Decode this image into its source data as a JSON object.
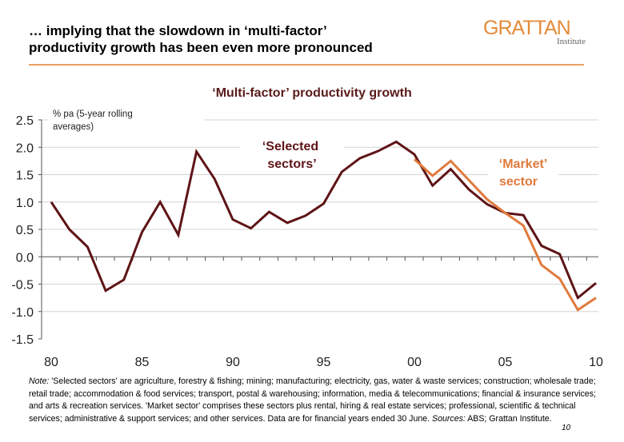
{
  "header": {
    "title_line1": "… implying that the slowdown in ‘multi-factor’",
    "title_line2": "productivity growth has been even more pronounced",
    "logo_main": "GRATTAN",
    "logo_sub": "Institute"
  },
  "colors": {
    "selected": "#5e1416",
    "market": "#e07a3c",
    "accent": "#e8a060"
  },
  "chart_data": {
    "type": "line",
    "title": "‘Multi-factor’ productivity growth",
    "ylabel": "% pa (5-year rolling averages)",
    "ylim": [
      -1.5,
      2.5
    ],
    "yticks": [
      "2.5",
      "2.0",
      "1.5",
      "1.0",
      "0.5",
      "0.0",
      "-0.5",
      "-1.0",
      "-1.5"
    ],
    "xlim": [
      1980,
      2010
    ],
    "xticks": [
      {
        "year": 1980,
        "label": "80"
      },
      {
        "year": 1985,
        "label": "85"
      },
      {
        "year": 1990,
        "label": "90"
      },
      {
        "year": 1995,
        "label": "95"
      },
      {
        "year": 2000,
        "label": "00"
      },
      {
        "year": 2005,
        "label": "05"
      },
      {
        "year": 2010,
        "label": "10"
      }
    ],
    "grid": true,
    "series": [
      {
        "name": "‘Selected sectors’",
        "color": "#5e1416",
        "x": [
          1980,
          1981,
          1982,
          1983,
          1984,
          1985,
          1986,
          1987,
          1988,
          1989,
          1990,
          1991,
          1992,
          1993,
          1994,
          1995,
          1996,
          1997,
          1998,
          1999,
          2000,
          2001,
          2002,
          2003,
          2004,
          2005,
          2006,
          2007,
          2008,
          2009,
          2010
        ],
        "values": [
          1.0,
          0.5,
          0.18,
          -0.62,
          -0.42,
          0.45,
          1.0,
          0.4,
          1.92,
          1.42,
          0.68,
          0.52,
          0.82,
          0.62,
          0.75,
          0.97,
          1.55,
          1.8,
          1.93,
          2.1,
          1.87,
          1.3,
          1.6,
          1.23,
          0.96,
          0.8,
          0.76,
          0.2,
          0.05,
          -0.75,
          -0.48
        ]
      },
      {
        "name": "‘Market’ sector",
        "color": "#e07a3c",
        "x": [
          2000,
          2001,
          2002,
          2003,
          2004,
          2005,
          2006,
          2007,
          2008,
          2009,
          2010
        ],
        "values": [
          1.78,
          1.48,
          1.75,
          1.4,
          1.05,
          0.8,
          0.57,
          -0.15,
          -0.4,
          -0.97,
          -0.75
        ]
      }
    ]
  },
  "labels": {
    "selected_1": "‘Selected",
    "selected_2": "sectors’",
    "market_1": "‘Market’",
    "market_2": "sector",
    "ylabel_1": "% pa (5-year rolling",
    "ylabel_2": "averages)"
  },
  "note": {
    "note_label": "Note:",
    "note_text": " 'Selected sectors' are agriculture, forestry & fishing; mining; manufacturing; electricity, gas, water & waste services; construction; wholesale trade; retail trade; accommodation & food services; transport, postal & warehousing; information, media & telecommunications; financial & insurance services; and arts & recreation services. 'Market sector' comprises these sectors plus rental, hiring & real estate services; professional, scientific & technical services; administrative & support services; and other services. Data are for financial years ended 30 June. ",
    "sources_label": "Sources:",
    "sources_text": " ABS; Grattan Institute."
  },
  "page_number": "10"
}
